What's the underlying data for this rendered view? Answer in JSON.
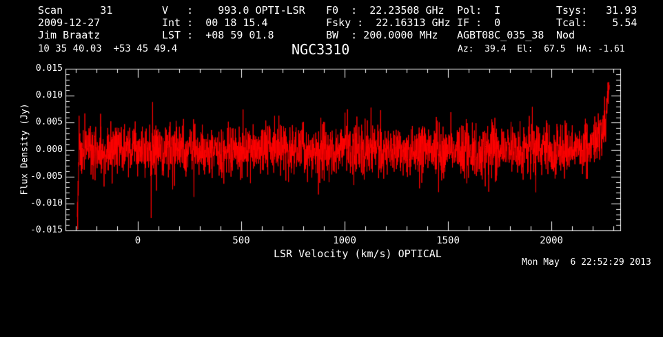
{
  "theme": {
    "background": "#000000",
    "foreground": "#ffffff",
    "spectrum_color": "#ff0000"
  },
  "header": {
    "col1": [
      "Scan      31",
      "2009-12-27",
      "Jim Braatz"
    ],
    "col2": [
      "V   :    993.0 OPTI-LSR",
      "Int :  00 18 15.4",
      "LST :  +08 59 01.8"
    ],
    "col3": [
      "F0  :  22.23508 GHz",
      "Fsky :  22.16313 GHz",
      "BW  : 200.0000 MHz"
    ],
    "col4": [
      "Pol:  I",
      "IF :  0",
      "AGBT08C_035_38"
    ],
    "col5": [
      "Tsys:   31.93",
      "Tcal:    5.54",
      "Nod"
    ]
  },
  "row2": {
    "coords": "10 35 40.03  +53 45 49.4",
    "title": "NGC3310",
    "azelha": "Az:  39.4  El:  67.5  HA: -1.61"
  },
  "footer": {
    "timestamp": "Mon May  6 22:52:29 2013"
  },
  "chart_data": {
    "type": "line",
    "title": "NGC3310",
    "xlabel": "LSR Velocity (km/s) OPTICAL",
    "ylabel": "Flux Density (Jy)",
    "xlim": [
      -350,
      2333
    ],
    "ylim": [
      -0.015,
      0.015
    ],
    "grid": false,
    "frame_color": "#ffffff",
    "background": "#000000",
    "x_ticks": {
      "major_values": [
        0,
        500,
        1000,
        1500,
        2000
      ],
      "labels": [
        "0",
        "500",
        "1000",
        "1500",
        "2000"
      ],
      "minor_step": 100,
      "minor_range": [
        -300,
        2300
      ]
    },
    "y_ticks": {
      "major_values": [
        0.015,
        0.01,
        0.005,
        0.0,
        -0.005,
        -0.01,
        -0.015
      ],
      "labels": [
        "0.015",
        "0.010",
        "0.005",
        "0.000",
        "-0.005",
        "-0.010",
        "-0.015"
      ],
      "minor_step": 0.001
    },
    "series": [
      {
        "name": "spectrum",
        "color": "#ff0000",
        "x_start": -293,
        "x_end": 2280,
        "n_points": 2600,
        "baseline_jy": 0.0,
        "noise_sigma_jy": 0.0023,
        "spike_fraction": 0.03,
        "spike_scale": 1.9,
        "seed": 20130506,
        "left_edge": {
          "start_v": -283,
          "min_jy": -0.0126
        },
        "right_edge": {
          "ramp_start_v": 2150,
          "ramp_jy": 0.0022,
          "steep_start_v": 2240,
          "max_jy": 0.0125
        },
        "description": "Noisy flat baseline spectrum centered on 0 Jy, typical peaks about +/-0.010 Jy, no detected line; band-edge artifacts: narrow dip to -0.0126 Jy at left edge and steep rise to +0.0125 Jy at right edge"
      }
    ]
  }
}
